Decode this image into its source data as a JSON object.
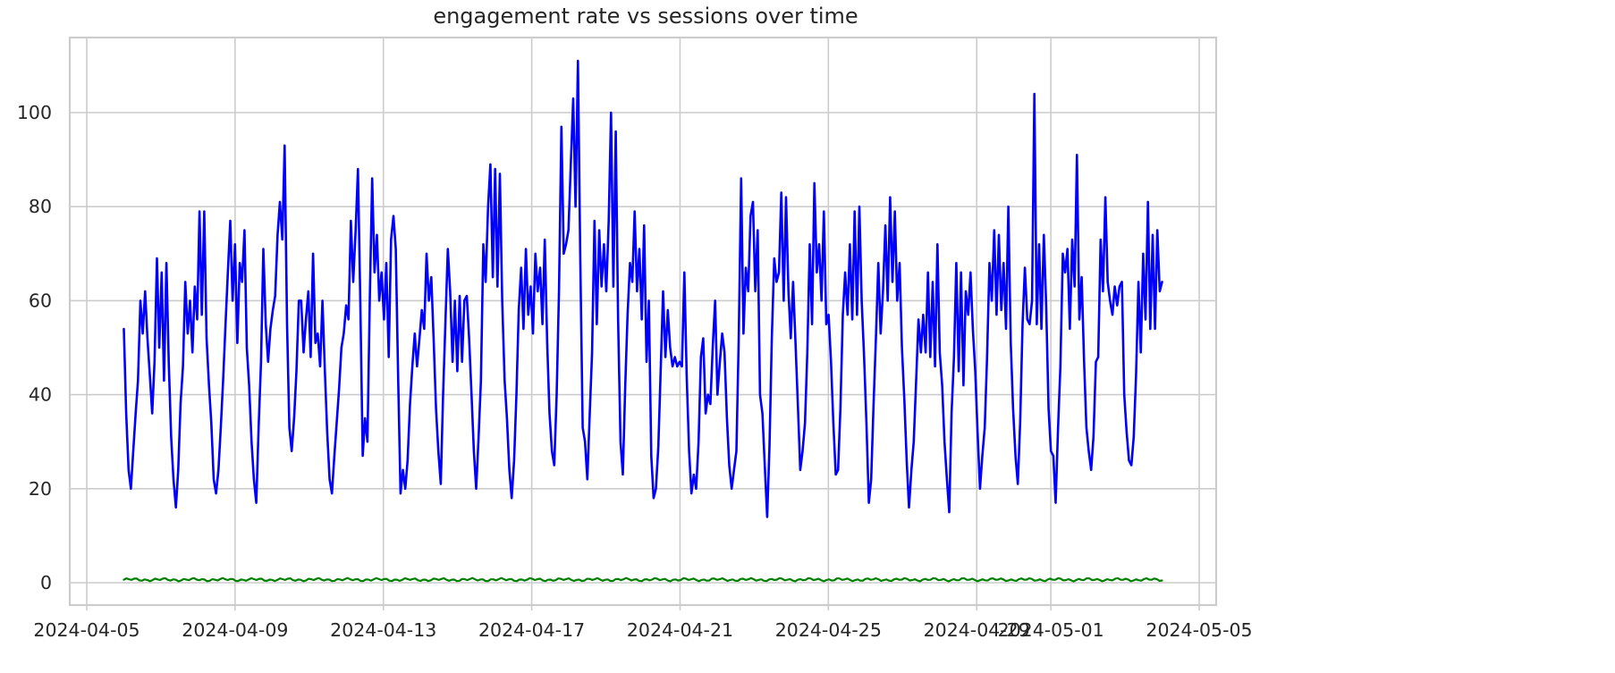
{
  "chart_data": {
    "type": "line",
    "title": "engagement rate vs sessions over time",
    "xlabel": "",
    "ylabel": "",
    "x_start": "2024-04-06",
    "x_end": "2024-05-04",
    "xlim": [
      "2024-04-05",
      "2024-05-05"
    ],
    "ylim": [
      -5,
      116
    ],
    "grid": true,
    "legend": "none",
    "x_ticks": [
      {
        "date": "2024-04-05",
        "label": "2024-04-05"
      },
      {
        "date": "2024-04-09",
        "label": "2024-04-09"
      },
      {
        "date": "2024-04-13",
        "label": "2024-04-13"
      },
      {
        "date": "2024-04-17",
        "label": "2024-04-17"
      },
      {
        "date": "2024-04-21",
        "label": "2024-04-21"
      },
      {
        "date": "2024-04-25",
        "label": "2024-04-25"
      },
      {
        "date": "2024-04-29",
        "label": "2024-04-29"
      },
      {
        "date": "2024-05-01",
        "label": "2024-05-01"
      },
      {
        "date": "2024-05-05",
        "label": "2024-05-05"
      }
    ],
    "y_ticks": [
      0,
      20,
      40,
      60,
      80,
      100
    ],
    "series": [
      {
        "color": "#0000ff",
        "values": [
          54,
          36,
          24,
          20,
          28,
          36,
          43,
          60,
          53,
          62,
          52,
          44,
          36,
          47,
          69,
          50,
          66,
          43,
          68,
          47,
          31,
          22,
          16,
          24,
          38,
          46,
          64,
          53,
          60,
          49,
          63,
          56,
          79,
          57,
          79,
          52,
          42,
          34,
          22,
          19,
          24,
          33,
          43,
          55,
          66,
          77,
          60,
          72,
          51,
          68,
          64,
          75,
          50,
          42,
          30,
          22,
          17,
          33,
          47,
          71,
          55,
          47,
          54,
          58,
          61,
          74,
          81,
          73,
          93,
          55,
          33,
          28,
          35,
          45,
          60,
          60,
          49,
          56,
          62,
          48,
          70,
          51,
          53,
          46,
          60,
          45,
          32,
          22,
          19,
          27,
          34,
          41,
          50,
          53,
          59,
          56,
          77,
          64,
          75,
          88,
          60,
          27,
          35,
          30,
          60,
          86,
          66,
          74,
          60,
          66,
          56,
          68,
          48,
          73,
          78,
          71,
          43,
          19,
          24,
          20,
          26,
          38,
          46,
          53,
          46,
          52,
          58,
          54,
          70,
          60,
          65,
          52,
          37,
          28,
          21,
          40,
          56,
          71,
          62,
          47,
          60,
          45,
          61,
          47,
          60,
          61,
          52,
          40,
          28,
          20,
          31,
          43,
          72,
          64,
          80,
          89,
          65,
          88,
          63,
          87,
          60,
          43,
          35,
          24,
          18,
          26,
          40,
          58,
          67,
          54,
          71,
          57,
          63,
          53,
          70,
          62,
          67,
          55,
          73,
          51,
          36,
          28,
          25,
          40,
          62,
          97,
          70,
          72,
          75,
          89,
          103,
          80,
          111,
          69,
          33,
          30,
          22,
          36,
          49,
          77,
          55,
          75,
          63,
          72,
          62,
          77,
          100,
          63,
          96,
          56,
          30,
          23,
          42,
          57,
          68,
          64,
          79,
          62,
          71,
          56,
          76,
          47,
          60,
          27,
          18,
          20,
          29,
          45,
          62,
          48,
          58,
          50,
          46,
          48,
          46,
          47,
          46,
          66,
          44,
          28,
          19,
          23,
          20,
          30,
          48,
          52,
          36,
          40,
          38,
          50,
          60,
          40,
          47,
          53,
          49,
          35,
          25,
          20,
          24,
          28,
          52,
          86,
          53,
          67,
          62,
          78,
          81,
          62,
          75,
          40,
          36,
          25,
          14,
          29,
          52,
          69,
          64,
          66,
          83,
          60,
          82,
          62,
          52,
          64,
          51,
          38,
          24,
          28,
          34,
          49,
          72,
          55,
          85,
          66,
          72,
          60,
          79,
          55,
          57,
          47,
          34,
          23,
          24,
          37,
          57,
          66,
          57,
          72,
          56,
          79,
          57,
          80,
          60,
          48,
          34,
          17,
          22,
          38,
          52,
          68,
          53,
          62,
          76,
          60,
          82,
          64,
          79,
          60,
          68,
          50,
          39,
          26,
          16,
          24,
          30,
          43,
          56,
          49,
          57,
          49,
          66,
          48,
          64,
          46,
          72,
          49,
          42,
          30,
          22,
          15,
          36,
          48,
          68,
          45,
          66,
          42,
          62,
          57,
          66,
          54,
          45,
          32,
          20,
          27,
          33,
          48,
          68,
          60,
          75,
          57,
          74,
          58,
          68,
          54,
          80,
          51,
          37,
          27,
          21,
          34,
          55,
          67,
          56,
          55,
          60,
          104,
          55,
          72,
          54,
          74,
          59,
          37,
          28,
          27,
          17,
          33,
          46,
          70,
          66,
          71,
          54,
          73,
          63,
          91,
          56,
          65,
          47,
          33,
          28,
          24,
          31,
          47,
          48,
          73,
          62,
          82,
          64,
          60,
          57,
          63,
          59,
          63,
          64,
          40,
          32,
          26,
          25,
          31,
          44,
          64,
          49,
          70,
          56,
          81,
          54,
          74,
          54,
          75,
          62,
          64
        ]
      },
      {
        "color": "#008000",
        "value": 0.65
      }
    ]
  }
}
